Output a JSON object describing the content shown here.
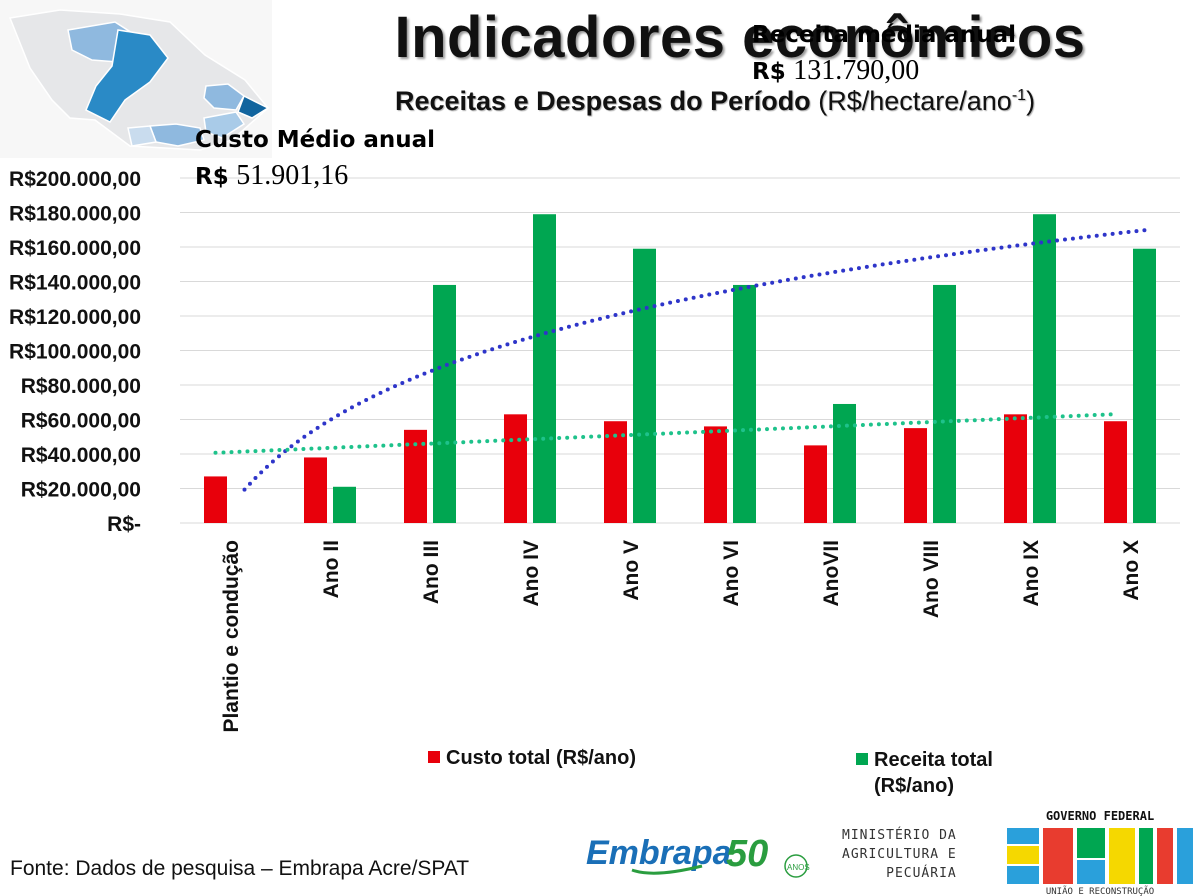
{
  "header": {
    "title": "Indicadores econômicos",
    "subtitle_bold": "Receitas e Despesas do Período",
    "subtitle_unit": "(R$/hectare/ano",
    "subtitle_sup": "-1",
    "subtitle_close": ")"
  },
  "annotations": {
    "cost_label": "Custo Médio anual",
    "cost_currency": "R$",
    "cost_value": "51.901,16",
    "revenue_label": "Receita média anual",
    "revenue_currency": "R$",
    "revenue_value": "131.790,00"
  },
  "chart_data": {
    "type": "bar",
    "categories": [
      "Plantio e condução",
      "Ano II",
      "Ano III",
      "Ano IV",
      "Ano V",
      "Ano VI",
      "AnoVII",
      "Ano VIII",
      "Ano IX",
      "Ano X"
    ],
    "series": [
      {
        "name": "Custo total (R$/ano)",
        "color": "#e8000b",
        "values": [
          27000,
          38000,
          54000,
          63000,
          59000,
          56000,
          45000,
          55000,
          63000,
          59000
        ]
      },
      {
        "name": "Receita total (R$/ano)",
        "color": "#00a651",
        "values": [
          0,
          21000,
          138000,
          179000,
          159000,
          138000,
          69000,
          138000,
          179000,
          159000
        ]
      }
    ],
    "trendlines": [
      {
        "series": "Receita total (R$/ano)",
        "kind": "logarithmic",
        "color": "#2e35c9",
        "style": "dotted"
      },
      {
        "series": "Custo total (R$/ano)",
        "kind": "linear",
        "color": "#1ec28b",
        "style": "dotted"
      }
    ],
    "y_ticks": [
      "R$-",
      "R$20.000,00",
      "R$40.000,00",
      "R$60.000,00",
      "R$80.000,00",
      "R$100.000,00",
      "R$120.000,00",
      "R$140.000,00",
      "R$160.000,00",
      "R$180.000,00",
      "R$200.000,00"
    ],
    "ylim": [
      0,
      200000
    ],
    "grid": true,
    "legend_position": "bottom"
  },
  "legend": {
    "cost": "Custo total (R$/ano)",
    "revenue_line1": "Receita total",
    "revenue_line2": "(R$/ano)"
  },
  "footer": {
    "source": "Fonte: Dados de pesquisa – Embrapa Acre/SPAT",
    "embrapa": "Embrapa",
    "fifty": "50",
    "anos": "ANOS",
    "ministerio": [
      "MINISTÉRIO DA",
      "AGRICULTURA E",
      "PECUÁRIA"
    ],
    "gov_top": "GOVERNO FEDERAL",
    "gov_brasil": "BRASIL",
    "gov_bottom": "UNIÃO E RECONSTRUÇÃO"
  }
}
